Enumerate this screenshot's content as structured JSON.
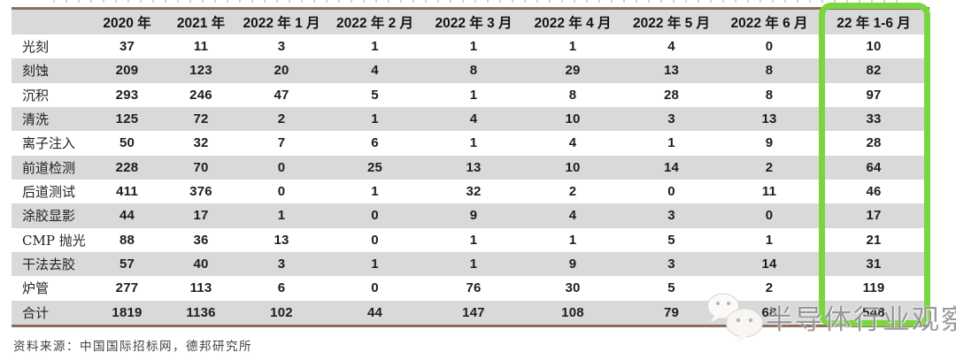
{
  "table": {
    "columns": [
      "",
      "2020 年",
      "2021 年",
      "2022 年 1 月",
      "2022 年 2 月",
      "2022 年 3 月",
      "2022 年 4 月",
      "2022 年 5 月",
      "2022 年 6 月",
      "22 年 1-6 月"
    ],
    "rows": [
      {
        "label": "光刻",
        "values": [
          37,
          11,
          3,
          1,
          1,
          1,
          4,
          0,
          10
        ]
      },
      {
        "label": "刻蚀",
        "values": [
          209,
          123,
          20,
          4,
          8,
          29,
          13,
          8,
          82
        ]
      },
      {
        "label": "沉积",
        "values": [
          293,
          246,
          47,
          5,
          1,
          8,
          28,
          8,
          97
        ]
      },
      {
        "label": "清洗",
        "values": [
          125,
          72,
          2,
          1,
          4,
          10,
          3,
          13,
          33
        ]
      },
      {
        "label": "离子注入",
        "values": [
          50,
          32,
          7,
          6,
          1,
          4,
          1,
          9,
          28
        ]
      },
      {
        "label": "前道检测",
        "values": [
          228,
          70,
          0,
          25,
          13,
          10,
          14,
          2,
          64
        ]
      },
      {
        "label": "后道测试",
        "values": [
          411,
          376,
          0,
          1,
          32,
          2,
          0,
          11,
          46
        ]
      },
      {
        "label": "涂胶显影",
        "values": [
          44,
          17,
          1,
          0,
          9,
          4,
          3,
          0,
          17
        ]
      },
      {
        "label": "CMP 抛光",
        "values": [
          88,
          36,
          13,
          0,
          1,
          1,
          5,
          1,
          21
        ]
      },
      {
        "label": "干法去胶",
        "values": [
          57,
          40,
          3,
          1,
          1,
          9,
          3,
          14,
          31
        ]
      },
      {
        "label": "炉管",
        "values": [
          277,
          113,
          6,
          0,
          76,
          30,
          5,
          2,
          119
        ]
      },
      {
        "label": "合计",
        "values": [
          1819,
          1136,
          102,
          44,
          147,
          108,
          79,
          68,
          548
        ]
      }
    ],
    "highlighted_column": "22 年 1-6 月"
  },
  "footer": {
    "source": "资料来源：中国国际招标网，德邦研究所"
  },
  "watermark": {
    "text": "半导体行业观察",
    "icon": "wechat-icon"
  },
  "colors": {
    "table_border": "#8d6e5c",
    "row_alt_bg": "#d9d9d9",
    "highlight_green": "#79d63f",
    "watermark_gray": "#929292"
  }
}
